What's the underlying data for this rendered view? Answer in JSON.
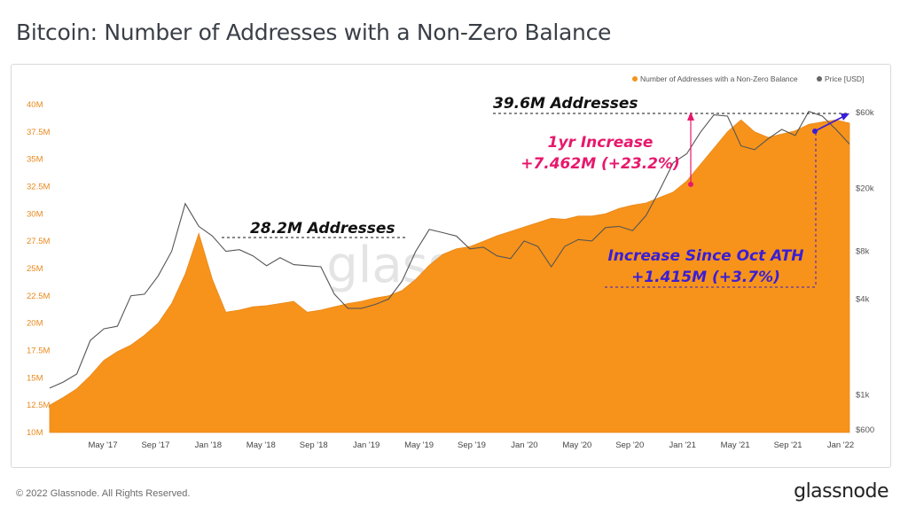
{
  "title": "Bitcoin: Number of Addresses with a Non-Zero Balance",
  "footer": {
    "copyright": "© 2022 Glassnode. All Rights Reserved.",
    "brand": "glassnode"
  },
  "watermark": "glassnode",
  "colors": {
    "area": "#f7931a",
    "price": "#555555",
    "pink": "#e8186c",
    "purple": "#3a1ed6",
    "axis_left": "#e8891d"
  },
  "chart_data": {
    "type": "area",
    "title": "Bitcoin: Number of Addresses with a Non-Zero Balance",
    "legend": [
      "Number of Addresses with a Non-Zero Balance",
      "Price [USD]"
    ],
    "legend_position": "top-right",
    "x_ticks": [
      "May '17",
      "Sep '17",
      "Jan '18",
      "May '18",
      "Sep '18",
      "Jan '19",
      "May '19",
      "Sep '19",
      "Jan '20",
      "May '20",
      "Sep '20",
      "Jan '21",
      "May '21",
      "Sep '21",
      "Jan '22"
    ],
    "y_left_ticks": [
      "10M",
      "12.5M",
      "15M",
      "17.5M",
      "20M",
      "22.5M",
      "25M",
      "27.5M",
      "30M",
      "32.5M",
      "35M",
      "37.5M",
      "40M"
    ],
    "y_left_range": [
      10,
      40
    ],
    "y_right_ticks": [
      "$600",
      "$1k",
      "$4k",
      "$8k",
      "$20k",
      "$60k"
    ],
    "y_right_range": [
      600,
      60000
    ],
    "y_right_scale": "log",
    "x": [
      "2017-02",
      "2017-03",
      "2017-04",
      "2017-05",
      "2017-06",
      "2017-07",
      "2017-08",
      "2017-09",
      "2017-10",
      "2017-11",
      "2017-12",
      "2018-01",
      "2018-02",
      "2018-03",
      "2018-04",
      "2018-05",
      "2018-06",
      "2018-07",
      "2018-08",
      "2018-09",
      "2018-10",
      "2018-11",
      "2018-12",
      "2019-01",
      "2019-02",
      "2019-03",
      "2019-04",
      "2019-05",
      "2019-06",
      "2019-07",
      "2019-08",
      "2019-09",
      "2019-10",
      "2019-11",
      "2019-12",
      "2020-01",
      "2020-02",
      "2020-03",
      "2020-04",
      "2020-05",
      "2020-06",
      "2020-07",
      "2020-08",
      "2020-09",
      "2020-10",
      "2020-11",
      "2020-12",
      "2021-01",
      "2021-02",
      "2021-03",
      "2021-04",
      "2021-05",
      "2021-06",
      "2021-07",
      "2021-08",
      "2021-09",
      "2021-10",
      "2021-11",
      "2021-12",
      "2022-01"
    ],
    "series": [
      {
        "name": "Number of Addresses with a Non-Zero Balance",
        "axis": "left",
        "values": [
          12.5,
          13.2,
          14.0,
          15.2,
          16.6,
          17.4,
          18.0,
          18.9,
          20.0,
          21.8,
          24.5,
          28.2,
          24.0,
          21.0,
          21.2,
          21.5,
          21.6,
          21.8,
          22.0,
          21.0,
          21.2,
          21.5,
          21.8,
          22.0,
          22.3,
          22.5,
          23.0,
          24.0,
          25.3,
          26.3,
          26.8,
          27.0,
          27.5,
          28.0,
          28.4,
          28.8,
          29.2,
          29.6,
          29.5,
          29.8,
          29.8,
          30.0,
          30.5,
          30.8,
          31.0,
          31.5,
          32.0,
          33.0,
          34.5,
          36.0,
          37.5,
          38.6,
          37.5,
          37.0,
          37.3,
          37.6,
          38.2,
          38.4,
          38.6,
          38.3
        ]
      },
      {
        "name": "Price [USD]",
        "axis": "right",
        "values": [
          1100,
          1200,
          1350,
          2200,
          2600,
          2700,
          4200,
          4300,
          5600,
          8000,
          16000,
          11500,
          10000,
          8000,
          8200,
          7500,
          6500,
          7300,
          6600,
          6500,
          6400,
          4300,
          3500,
          3500,
          3700,
          4000,
          5200,
          8000,
          11000,
          10500,
          10000,
          8300,
          8500,
          7500,
          7200,
          9300,
          8600,
          6400,
          8600,
          9500,
          9300,
          11300,
          11500,
          10800,
          13500,
          19500,
          29000,
          33000,
          45000,
          58000,
          57000,
          37000,
          35000,
          41000,
          47000,
          43000,
          61000,
          57000,
          47000,
          38000
        ]
      }
    ],
    "annotations": [
      {
        "text": "28.2M Addresses",
        "color": "#111111"
      },
      {
        "text": "39.6M Addresses",
        "color": "#111111"
      },
      {
        "text": "1yr Increase",
        "color": "#e8186c"
      },
      {
        "text": "+7.462M (+23.2%)",
        "color": "#e8186c"
      },
      {
        "text": "Increase Since Oct ATH",
        "color": "#3a1ed6"
      },
      {
        "text": "+1.415M (+3.7%)",
        "color": "#3a1ed6"
      }
    ]
  }
}
